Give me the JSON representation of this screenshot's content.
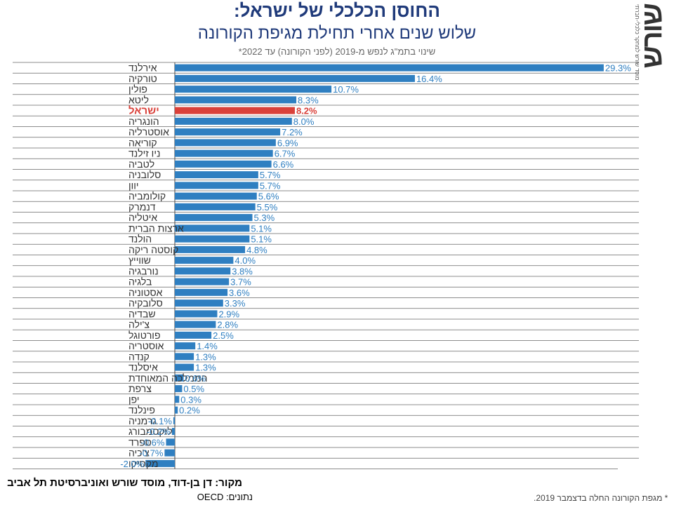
{
  "header": {
    "title": "החוסן הכלכלי של ישראל:",
    "subtitle": "שלוש שנים אחרי תחילת מגיפת הקורונה",
    "axis_note": "שינוי בתמ\"ג לנפש מ-2019 (לפני הקורונה) עד 2022*"
  },
  "logo": {
    "word": "שורש",
    "tagline": "מוסד שורש למחקר כלכלי-חברתי"
  },
  "footer": {
    "source": "מקור:  דן בן-דוד, מוסד שורש ואוניברסיטת תל אביב",
    "data_credit": "נתונים: OECD",
    "footnote": "* מגפת הקורונה החלה בדצמבר 2019."
  },
  "colors": {
    "bar": "#2f7fc1",
    "highlight": "#d9413a",
    "grid": "#666666",
    "label": "#2f7fc1"
  },
  "chart_data": {
    "type": "bar",
    "orientation": "horizontal",
    "title": "שינוי בתמ\"ג לנפש מ-2019 (לפני הקורונה) עד 2022*",
    "value_suffix": "%",
    "highlight": "ישראל",
    "xlim": [
      -2.0,
      29.3
    ],
    "categories": [
      "אירלנד",
      "טורקיה",
      "פולין",
      "ליטא",
      "ישראל",
      "הונגריה",
      "אוסטרליה",
      "קוריאה",
      "ניו זילנד",
      "לטביה",
      "סלובניה",
      "יוון",
      "קולומביה",
      "דנמרק",
      "איטליה",
      "ארצות הברית",
      "הולנד",
      "קוסטה ריקה",
      "שווייץ",
      "נורבגיה",
      "בלגיה",
      "אסטוניה",
      "סלובקיה",
      "שבדיה",
      "צ'ילה",
      "פורטוגל",
      "אוסטריה",
      "קנדה",
      "איסלנד",
      "הממלכה המאוחדת",
      "צרפת",
      "יפן",
      "פינלנד",
      "גרמניה",
      "לוקסמבורג",
      "ספרד",
      "צ'כיה",
      "מקסיקו"
    ],
    "values": [
      29.3,
      16.4,
      10.7,
      8.3,
      8.2,
      8.0,
      7.2,
      6.9,
      6.7,
      6.6,
      5.7,
      5.7,
      5.6,
      5.5,
      5.3,
      5.1,
      5.1,
      4.8,
      4.0,
      3.8,
      3.7,
      3.6,
      3.3,
      2.9,
      2.8,
      2.5,
      1.4,
      1.3,
      1.3,
      0.6,
      0.5,
      0.3,
      0.2,
      -0.1,
      -0.2,
      -0.6,
      -0.7,
      -2.0
    ],
    "labels": [
      "29.3%",
      "16.4%",
      "10.7%",
      "8.3%",
      "8.2%",
      "8.0%",
      "7.2%",
      "6.9%",
      "6.7%",
      "6.6%",
      "5.7%",
      "5.7%",
      "5.6%",
      "5.5%",
      "5.3%",
      "5.1%",
      "5.1%",
      "4.8%",
      "4.0%",
      "3.8%",
      "3.7%",
      "3.6%",
      "3.3%",
      "2.9%",
      "2.8%",
      "2.5%",
      "1.4%",
      "1.3%",
      "1.3%",
      "0.6%",
      "0.5%",
      "0.3%",
      "0.2%",
      "-0.1%",
      "-0.2%",
      "-0.6%",
      "-0.7%",
      "-2.0%"
    ]
  }
}
